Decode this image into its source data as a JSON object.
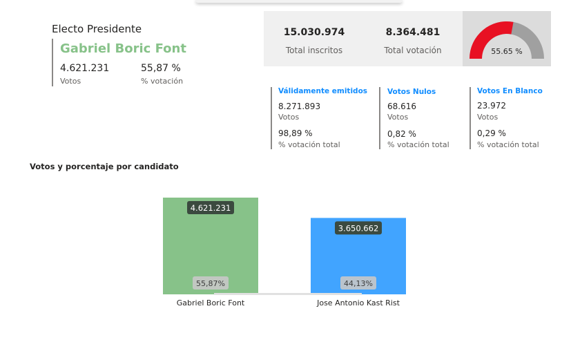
{
  "elected": {
    "title": "Electo Presidente",
    "name": "Gabriel Boric Font",
    "votes": "4.621.231",
    "votes_label": "Votos",
    "percent": "55,87 %",
    "percent_label": "% votación"
  },
  "totals": {
    "inscritos_value": "15.030.974",
    "inscritos_label": "Total inscritos",
    "votacion_value": "8.364.481",
    "votacion_label": "Total votación",
    "participation_gauge": {
      "value": 55.65,
      "label": "55.65 %",
      "fill_color": "#e81123",
      "track_color": "#a0a0a0"
    }
  },
  "vote_types": [
    {
      "title": "Válidamente emitidos",
      "votes": "8.271.893",
      "votes_label": "Votos",
      "percent": "98,89 %",
      "percent_label": "% votación total"
    },
    {
      "title": "Votos Nulos",
      "votes": "68.616",
      "votes_label": "Votos",
      "percent": "0,82 %",
      "percent_label": "% votación total"
    },
    {
      "title": "Votos En Blanco",
      "votes": "23.972",
      "votes_label": "Votos",
      "percent": "0,29 %",
      "percent_label": "% votación total"
    }
  ],
  "chart_title": "Votos y porcentaje por candidato",
  "chart_data": {
    "type": "bar",
    "categories": [
      "Gabriel Boric Font",
      "Jose Antonio Kast Rist"
    ],
    "values": [
      4621231,
      3650662
    ],
    "value_labels": [
      "4.621.231",
      "3.650.662"
    ],
    "percent_labels": [
      "55,87%",
      "44,13%"
    ],
    "colors": [
      "#87c289",
      "#41a4ff"
    ],
    "ylim": [
      0,
      5000000
    ],
    "title": "",
    "xlabel": "",
    "ylabel": ""
  }
}
